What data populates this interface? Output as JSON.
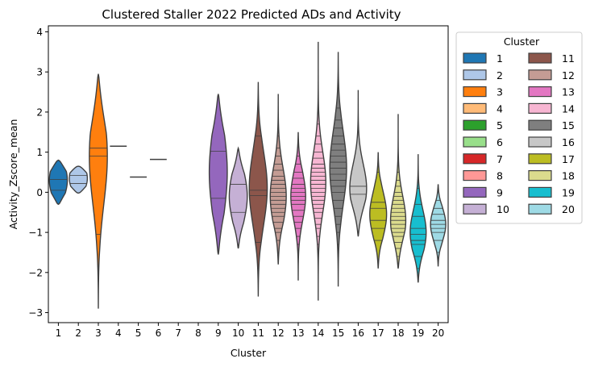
{
  "chart_data": {
    "type": "violin",
    "title": "Clustered Staller 2022 Predicted ADs and Activity",
    "xlabel": "Cluster",
    "ylabel": "Activity_Zscore_mean",
    "ylim": [
      -3.25,
      4.15
    ],
    "y_ticks": [
      -3,
      -2,
      -1,
      0,
      1,
      2,
      3,
      4
    ],
    "categories": [
      "1",
      "2",
      "3",
      "4",
      "5",
      "6",
      "7",
      "8",
      "9",
      "10",
      "11",
      "12",
      "13",
      "14",
      "15",
      "16",
      "17",
      "18",
      "19",
      "20"
    ],
    "legend": {
      "title": "Cluster",
      "placement": "outside-right",
      "columns": 2
    },
    "grid": false,
    "inner": "stick",
    "series": [
      {
        "name": "1",
        "color": "#1f77b4",
        "min": -0.3,
        "max": 0.8,
        "maxWidth": 0.45,
        "mode": 0.3,
        "spread": 0.45,
        "sticks": [
          0.05,
          0.32
        ]
      },
      {
        "name": "2",
        "color": "#aec7e8",
        "min": -0.02,
        "max": 0.65,
        "maxWidth": 0.45,
        "mode": 0.35,
        "spread": 0.35,
        "sticks": [
          0.22,
          0.42
        ]
      },
      {
        "name": "3",
        "color": "#ff7f0e",
        "min": -2.9,
        "max": 2.95,
        "maxWidth": 0.45,
        "mode": 0.9,
        "spread": 1.2,
        "sticks": [
          -1.05,
          0.9,
          1.1
        ]
      },
      {
        "name": "4",
        "color": "#ffbb78",
        "min": 1.15,
        "max": 1.15,
        "maxWidth": 0.45,
        "mode": 1.15,
        "spread": 0.1,
        "sticks": [
          1.15
        ]
      },
      {
        "name": "5",
        "color": "#2ca02c",
        "min": 0.38,
        "max": 0.38,
        "maxWidth": 0.45,
        "mode": 0.38,
        "spread": 0.1,
        "sticks": [
          0.38
        ]
      },
      {
        "name": "6",
        "color": "#98df8a",
        "min": 0.82,
        "max": 0.82,
        "maxWidth": 0.45,
        "mode": 0.82,
        "spread": 0.1,
        "sticks": [
          0.82
        ]
      },
      {
        "name": "7",
        "color": "#d62728",
        "empty": true
      },
      {
        "name": "8",
        "color": "#ff9896",
        "empty": true
      },
      {
        "name": "9",
        "color": "#9467bd",
        "min": -1.55,
        "max": 2.45,
        "maxWidth": 0.45,
        "mode": 0.5,
        "spread": 1.1,
        "sticks": [
          -0.15,
          1.02
        ]
      },
      {
        "name": "10",
        "color": "#c5b0d5",
        "min": -1.4,
        "max": 1.1,
        "maxWidth": 0.45,
        "mode": -0.1,
        "spread": 0.65,
        "sticks": [
          -0.5,
          0.2
        ]
      },
      {
        "name": "11",
        "color": "#8c564b",
        "min": -2.6,
        "max": 2.75,
        "maxWidth": 0.45,
        "mode": 0.1,
        "spread": 0.9,
        "sticks": [
          -1.25,
          -0.08,
          0.05,
          1.4
        ]
      },
      {
        "name": "12",
        "color": "#c49c94",
        "min": -1.8,
        "max": 2.45,
        "maxWidth": 0.4,
        "mode": -0.1,
        "spread": 0.7,
        "sticks": [
          -1.2,
          -1.0,
          -0.9,
          -0.75,
          -0.6,
          -0.5,
          -0.4,
          -0.3,
          -0.2,
          -0.1,
          0.0,
          0.1,
          0.2,
          0.3,
          0.4,
          0.55,
          0.7,
          0.9,
          1.1,
          1.4,
          1.7
        ]
      },
      {
        "name": "13",
        "color": "#e377c2",
        "min": -2.2,
        "max": 1.5,
        "maxWidth": 0.37,
        "mode": -0.1,
        "spread": 0.6,
        "sticks": [
          -1.6,
          -1.3,
          -1.1,
          -0.9,
          -0.75,
          -0.6,
          -0.45,
          -0.3,
          -0.2,
          -0.1,
          0.0,
          0.1,
          0.2,
          0.35,
          0.5,
          0.7,
          0.9
        ]
      },
      {
        "name": "14",
        "color": "#f7b6d2",
        "min": -2.7,
        "max": 3.75,
        "maxWidth": 0.38,
        "mode": 0.25,
        "spread": 0.75,
        "sticks": [
          -1.3,
          -1.1,
          -0.9,
          -0.8,
          -0.65,
          -0.5,
          -0.4,
          -0.3,
          -0.2,
          -0.1,
          0.0,
          0.1,
          0.2,
          0.3,
          0.4,
          0.5,
          0.6,
          0.7,
          0.85,
          1.0,
          1.2,
          1.4,
          1.7,
          2.0
        ]
      },
      {
        "name": "15",
        "color": "#7f7f7f",
        "min": -2.35,
        "max": 3.5,
        "maxWidth": 0.42,
        "mode": 0.6,
        "spread": 0.9,
        "sticks": [
          -1.6,
          -1.3,
          -1.0,
          -0.8,
          -0.6,
          -0.4,
          -0.2,
          0.0,
          0.15,
          0.3,
          0.45,
          0.6,
          0.75,
          0.9,
          1.05,
          1.2,
          1.4,
          1.6,
          1.8,
          2.1
        ]
      },
      {
        "name": "16",
        "color": "#c7c7c7",
        "min": -1.1,
        "max": 2.55,
        "maxWidth": 0.42,
        "mode": 0.1,
        "spread": 0.6,
        "sticks": [
          -0.05,
          0.15,
          1.5
        ]
      },
      {
        "name": "17",
        "color": "#bcbd22",
        "min": -1.9,
        "max": 1.0,
        "maxWidth": 0.42,
        "mode": -0.55,
        "spread": 0.55,
        "sticks": [
          -1.2,
          -0.9,
          -0.7,
          -0.4,
          -0.25,
          0.5
        ]
      },
      {
        "name": "18",
        "color": "#dbdb8d",
        "min": -1.9,
        "max": 1.95,
        "maxWidth": 0.38,
        "mode": -0.7,
        "spread": 0.6,
        "sticks": [
          -1.6,
          -1.4,
          -1.25,
          -1.1,
          -1.0,
          -0.9,
          -0.8,
          -0.7,
          -0.6,
          -0.5,
          -0.4,
          -0.3,
          -0.2,
          -0.1,
          0.0,
          0.15,
          0.3,
          0.5,
          0.8
        ]
      },
      {
        "name": "19",
        "color": "#17becf",
        "min": -2.25,
        "max": 0.95,
        "maxWidth": 0.4,
        "mode": -1.0,
        "spread": 0.55,
        "sticks": [
          -1.9,
          -1.6,
          -1.3,
          -1.2,
          -1.05,
          -0.9,
          -0.6,
          -0.3,
          0.1,
          0.3
        ]
      },
      {
        "name": "20",
        "color": "#9edae5",
        "min": -1.85,
        "max": 0.2,
        "maxWidth": 0.38,
        "mode": -0.8,
        "spread": 0.4,
        "sticks": [
          -1.5,
          -1.2,
          -1.0,
          -0.9,
          -0.8,
          -0.7,
          -0.55,
          -0.4,
          -0.2
        ]
      }
    ]
  }
}
